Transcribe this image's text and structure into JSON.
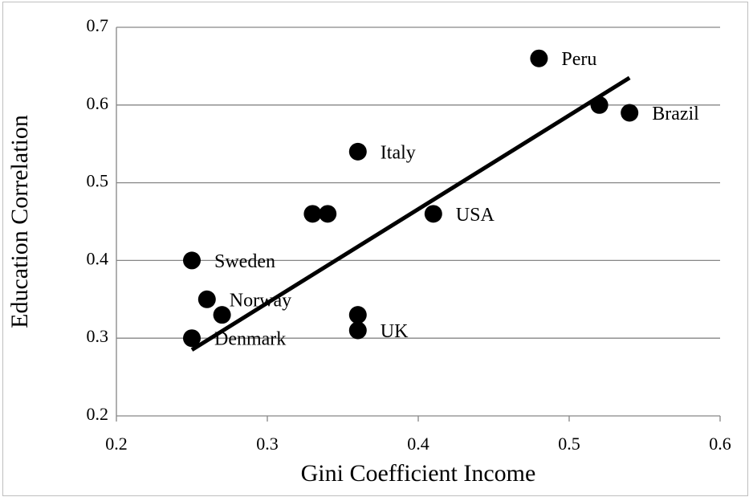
{
  "chart_data": {
    "type": "scatter",
    "x_label": "Gini Coefficient Income",
    "y_label": "Education Correlation",
    "x": [
      0.48,
      0.52,
      0.54,
      0.36,
      0.33,
      0.34,
      0.41,
      0.25,
      0.26,
      0.27,
      0.36,
      0.36,
      0.25
    ],
    "y": [
      0.66,
      0.6,
      0.59,
      0.54,
      0.46,
      0.46,
      0.46,
      0.4,
      0.35,
      0.33,
      0.33,
      0.31,
      0.3
    ],
    "labels": [
      "Peru",
      null,
      "Brazil",
      "Italy",
      null,
      null,
      "USA",
      "Sweden",
      "Norway",
      null,
      null,
      "UK",
      "Denmark"
    ],
    "color": "#000000",
    "trendline": {
      "x": [
        0.25,
        0.54
      ],
      "y": [
        0.285,
        0.635
      ],
      "color": "#000000"
    },
    "xlim": [
      0.2,
      0.6
    ],
    "ylim": [
      0.2,
      0.7
    ],
    "xticks": [
      0.2,
      0.3,
      0.4,
      0.5,
      0.6
    ],
    "yticks": [
      0.2,
      0.3,
      0.4,
      0.5,
      0.6,
      0.7
    ],
    "grid": true
  }
}
